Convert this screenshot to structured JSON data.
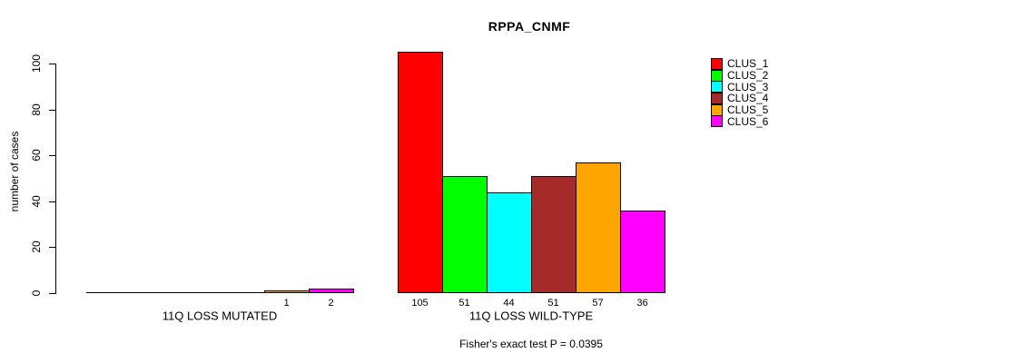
{
  "title": "RPPA_CNMF",
  "y_axis_title": "number of cases",
  "footer_note": "Fisher's exact test P = 0.0395",
  "chart_data": {
    "type": "bar",
    "title": "RPPA_CNMF",
    "xlabel": "",
    "ylabel": "number of cases",
    "ylim": [
      0,
      105
    ],
    "yticks": [
      0,
      20,
      40,
      60,
      80,
      100
    ],
    "grid": false,
    "legend_position": "top-right",
    "annotation": "Fisher's exact test P = 0.0395",
    "series_names": [
      "CLUS_1",
      "CLUS_2",
      "CLUS_3",
      "CLUS_4",
      "CLUS_5",
      "CLUS_6"
    ],
    "series_colors": [
      "#FF0000",
      "#00FF00",
      "#00FFFF",
      "#A52A2A",
      "#FFA500",
      "#FF00FF"
    ],
    "groups": [
      {
        "label": "11Q LOSS MUTATED",
        "values": [
          0,
          0,
          0,
          0,
          1,
          2
        ]
      },
      {
        "label": "11Q LOSS WILD-TYPE",
        "values": [
          105,
          51,
          44,
          51,
          57,
          36
        ]
      }
    ],
    "bar_value_labels": [
      [
        "",
        "",
        "",
        "",
        "1",
        "2"
      ],
      [
        "105",
        "51",
        "44",
        "51",
        "57",
        "36"
      ]
    ]
  }
}
